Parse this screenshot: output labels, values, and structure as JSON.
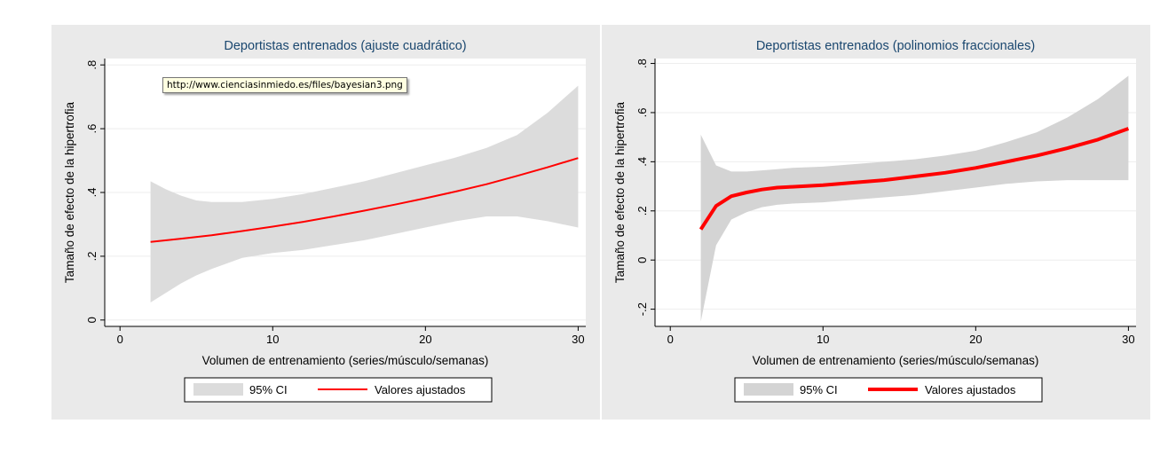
{
  "tooltip": {
    "text": "http://www.cienciasinmiedo.es/files/bayesian3.png"
  },
  "chart_data": [
    {
      "type": "line",
      "title": "Deportistas entrenados (ajuste cuadrático)",
      "xlabel": "Volumen de entrenamiento (series/músculo/semanas)",
      "ylabel": "Tamaño de efecto de la hipertrofia",
      "xlim": [
        -1,
        30.5
      ],
      "ylim": [
        -0.02,
        0.82
      ],
      "xticks": [
        0,
        10,
        20,
        30
      ],
      "xtick_labels": [
        "0",
        "10",
        "20",
        "30"
      ],
      "yticks": [
        0,
        0.2,
        0.4,
        0.6,
        0.8
      ],
      "ytick_labels": [
        "0",
        ".2",
        ".4",
        ".6",
        ".8"
      ],
      "grid": true,
      "legend_position": "bottom",
      "legend": [
        "95% CI",
        "Valores ajustados"
      ],
      "series": [
        {
          "name": "Valores ajustados",
          "color": "#ff0000",
          "x": [
            2,
            4,
            6,
            8,
            10,
            12,
            14,
            16,
            18,
            20,
            22,
            24,
            26,
            28,
            30
          ],
          "y": [
            0.245,
            0.255,
            0.266,
            0.279,
            0.293,
            0.308,
            0.325,
            0.343,
            0.362,
            0.382,
            0.403,
            0.426,
            0.452,
            0.479,
            0.508
          ]
        }
      ],
      "ci_band": {
        "name": "95% CI",
        "color": "#dcdcdc",
        "x": [
          2,
          3,
          4,
          5,
          6,
          8,
          10,
          12,
          14,
          16,
          18,
          20,
          22,
          24,
          26,
          28,
          30
        ],
        "lower": [
          0.055,
          0.085,
          0.115,
          0.14,
          0.16,
          0.195,
          0.21,
          0.22,
          0.235,
          0.25,
          0.27,
          0.29,
          0.31,
          0.325,
          0.325,
          0.31,
          0.29
        ],
        "upper": [
          0.435,
          0.41,
          0.39,
          0.375,
          0.37,
          0.37,
          0.38,
          0.395,
          0.415,
          0.435,
          0.46,
          0.485,
          0.51,
          0.54,
          0.58,
          0.65,
          0.735
        ]
      }
    },
    {
      "type": "line",
      "title": "Deportistas entrenados (polinomios fraccionales)",
      "xlabel": "Volumen de entrenamiento (series/músculo/semanas)",
      "ylabel": "Tamaño de efecto de la hipertrofia",
      "xlim": [
        -1,
        30.5
      ],
      "ylim": [
        -0.27,
        0.82
      ],
      "xticks": [
        0,
        10,
        20,
        30
      ],
      "xtick_labels": [
        "0",
        "10",
        "20",
        "30"
      ],
      "yticks": [
        -0.2,
        0,
        0.2,
        0.4,
        0.6,
        0.8
      ],
      "ytick_labels": [
        "-.2",
        "0",
        ".2",
        ".4",
        ".6",
        ".8"
      ],
      "grid": true,
      "legend_position": "bottom",
      "legend": [
        "95% CI",
        "Valores ajustados"
      ],
      "series": [
        {
          "name": "Valores ajustados",
          "color": "#ff0000",
          "x": [
            2,
            3,
            4,
            5,
            6,
            7,
            8,
            10,
            12,
            14,
            16,
            18,
            20,
            22,
            24,
            26,
            28,
            30
          ],
          "y": [
            0.125,
            0.22,
            0.26,
            0.275,
            0.287,
            0.295,
            0.298,
            0.305,
            0.315,
            0.325,
            0.34,
            0.355,
            0.375,
            0.4,
            0.425,
            0.455,
            0.49,
            0.535
          ]
        }
      ],
      "ci_band": {
        "name": "95% CI",
        "color": "#d4d4d4",
        "x": [
          2,
          3,
          4,
          5,
          6,
          7,
          8,
          10,
          12,
          14,
          16,
          18,
          20,
          22,
          24,
          26,
          28,
          30
        ],
        "lower": [
          -0.25,
          0.06,
          0.165,
          0.195,
          0.215,
          0.225,
          0.23,
          0.235,
          0.245,
          0.255,
          0.265,
          0.28,
          0.295,
          0.31,
          0.32,
          0.325,
          0.325,
          0.325
        ],
        "upper": [
          0.51,
          0.385,
          0.36,
          0.36,
          0.365,
          0.37,
          0.375,
          0.38,
          0.39,
          0.4,
          0.41,
          0.425,
          0.445,
          0.48,
          0.52,
          0.58,
          0.655,
          0.75
        ]
      }
    }
  ]
}
